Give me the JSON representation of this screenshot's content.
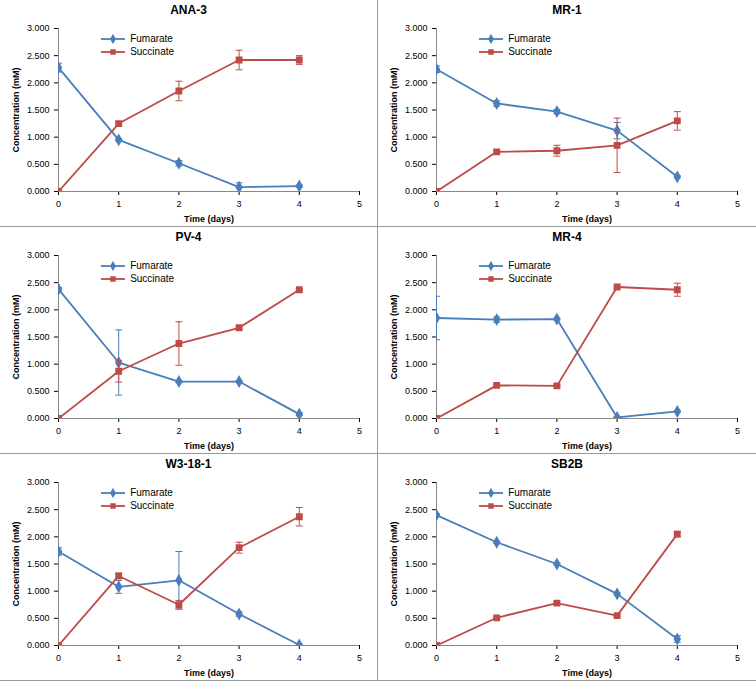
{
  "chart_data": [
    {
      "type": "line",
      "title": "ANA-3",
      "x_label": "Time (days)",
      "y_label": "Concentration (mM)",
      "x": [
        0,
        1,
        2,
        3,
        4
      ],
      "xlim": [
        0,
        5
      ],
      "xticks": [
        0,
        1,
        2,
        3,
        4,
        5
      ],
      "ylim": [
        0,
        3
      ],
      "yticks": [
        {
          "value": 0,
          "label": "0.000"
        },
        {
          "value": 0.5,
          "label": "0.500"
        },
        {
          "value": 1,
          "label": "1.000"
        },
        {
          "value": 1.5,
          "label": "1.500"
        },
        {
          "value": 2,
          "label": "2.000"
        },
        {
          "value": 2.5,
          "label": "2.500"
        },
        {
          "value": 3,
          "label": "3.000"
        }
      ],
      "legend": "top-left",
      "series": [
        {
          "name": "Fumarate",
          "color": "#4a7ebb",
          "marker": "diamond",
          "values": [
            2.28,
            0.95,
            0.52,
            0.08,
            0.1
          ],
          "errors": [
            0.08,
            0.02,
            0.05,
            0.08,
            0.02
          ]
        },
        {
          "name": "Succinate",
          "color": "#be4b48",
          "marker": "square",
          "values": [
            0,
            1.25,
            1.85,
            2.42,
            2.42
          ],
          "errors": [
            0,
            0.03,
            0.18,
            0.18,
            0.08
          ]
        }
      ]
    },
    {
      "type": "line",
      "title": "MR-1",
      "x_label": "Time (days)",
      "y_label": "Concentration (mM)",
      "x": [
        0,
        1,
        2,
        3,
        4
      ],
      "xlim": [
        0,
        5
      ],
      "xticks": [
        0,
        1,
        2,
        3,
        4,
        5
      ],
      "ylim": [
        0,
        3
      ],
      "yticks": [
        {
          "value": 0,
          "label": "0.000"
        },
        {
          "value": 0.5,
          "label": "0.500"
        },
        {
          "value": 1,
          "label": "1.000"
        },
        {
          "value": 1.5,
          "label": "1.500"
        },
        {
          "value": 2,
          "label": "2.000"
        },
        {
          "value": 2.5,
          "label": "2.500"
        },
        {
          "value": 3,
          "label": "3.000"
        }
      ],
      "legend": "top-left",
      "series": [
        {
          "name": "Fumarate",
          "color": "#4a7ebb",
          "marker": "diamond",
          "values": [
            2.25,
            1.62,
            1.47,
            1.12,
            0.27
          ],
          "errors": [
            0.06,
            0.05,
            0.04,
            0.15,
            0.02
          ]
        },
        {
          "name": "Succinate",
          "color": "#be4b48",
          "marker": "square",
          "values": [
            0,
            0.73,
            0.75,
            0.85,
            1.3
          ],
          "errors": [
            0,
            0.03,
            0.1,
            0.5,
            0.17
          ]
        }
      ]
    },
    {
      "type": "line",
      "title": "PV-4",
      "x_label": "Time (days)",
      "y_label": "Concentration (mM)",
      "x": [
        0,
        1,
        2,
        3,
        4
      ],
      "xlim": [
        0,
        5
      ],
      "xticks": [
        0,
        1,
        2,
        3,
        4,
        5
      ],
      "ylim": [
        0,
        3
      ],
      "yticks": [
        {
          "value": 0,
          "label": "0.000"
        },
        {
          "value": 0.5,
          "label": "0.500"
        },
        {
          "value": 1,
          "label": "1.000"
        },
        {
          "value": 1.5,
          "label": "1.500"
        },
        {
          "value": 2,
          "label": "2.000"
        },
        {
          "value": 2.5,
          "label": "2.500"
        },
        {
          "value": 3,
          "label": "3.000"
        }
      ],
      "legend": "top-left",
      "series": [
        {
          "name": "Fumarate",
          "color": "#4a7ebb",
          "marker": "diamond",
          "values": [
            2.38,
            1.03,
            0.68,
            0.68,
            0.08
          ],
          "errors": [
            0.03,
            0.6,
            0.02,
            0.02,
            0.03
          ]
        },
        {
          "name": "Succinate",
          "color": "#be4b48",
          "marker": "square",
          "values": [
            0,
            0.87,
            1.38,
            1.67,
            2.37
          ],
          "errors": [
            0,
            0.2,
            0.4,
            0.02,
            0.02
          ]
        }
      ]
    },
    {
      "type": "line",
      "title": "MR-4",
      "x_label": "Time (days)",
      "y_label": "Concentration (mM)",
      "x": [
        0,
        1,
        2,
        3,
        4
      ],
      "xlim": [
        0,
        5
      ],
      "xticks": [
        0,
        1,
        2,
        3,
        4,
        5
      ],
      "ylim": [
        0,
        3
      ],
      "yticks": [
        {
          "value": 0,
          "label": "0.000"
        },
        {
          "value": 0.5,
          "label": "0.500"
        },
        {
          "value": 1,
          "label": "1.000"
        },
        {
          "value": 1.5,
          "label": "1.500"
        },
        {
          "value": 2,
          "label": "2.000"
        },
        {
          "value": 2.5,
          "label": "2.500"
        },
        {
          "value": 3,
          "label": "3.000"
        }
      ],
      "legend": "top-left",
      "series": [
        {
          "name": "Fumarate",
          "color": "#4a7ebb",
          "marker": "diamond",
          "values": [
            1.85,
            1.82,
            1.83,
            0.02,
            0.13
          ],
          "errors": [
            0.4,
            0.05,
            0.02,
            0.01,
            0.01
          ]
        },
        {
          "name": "Succinate",
          "color": "#be4b48",
          "marker": "square",
          "values": [
            0,
            0.61,
            0.6,
            2.42,
            2.37
          ],
          "errors": [
            0,
            0.02,
            0.02,
            0.02,
            0.12
          ]
        }
      ]
    },
    {
      "type": "line",
      "title": "W3-18-1",
      "x_label": "Time (days)",
      "y_label": "Concentration (mM)",
      "x": [
        0,
        1,
        2,
        3,
        4
      ],
      "xlim": [
        0,
        5
      ],
      "xticks": [
        0,
        1,
        2,
        3,
        4,
        5
      ],
      "ylim": [
        0,
        3
      ],
      "yticks": [
        {
          "value": 0,
          "label": "0.000"
        },
        {
          "value": 0.5,
          "label": "0.500"
        },
        {
          "value": 1,
          "label": "1.000"
        },
        {
          "value": 1.5,
          "label": "1.500"
        },
        {
          "value": 2,
          "label": "2.000"
        },
        {
          "value": 2.5,
          "label": "2.500"
        },
        {
          "value": 3,
          "label": "3.000"
        }
      ],
      "legend": "top-left",
      "series": [
        {
          "name": "Fumarate",
          "color": "#4a7ebb",
          "marker": "diamond",
          "values": [
            1.73,
            1.08,
            1.2,
            0.58,
            0.01
          ],
          "errors": [
            0.07,
            0.12,
            0.53,
            0.04,
            0.01
          ]
        },
        {
          "name": "Succinate",
          "color": "#be4b48",
          "marker": "square",
          "values": [
            0,
            1.28,
            0.75,
            1.8,
            2.37
          ],
          "errors": [
            0,
            0.05,
            0.08,
            0.1,
            0.17
          ]
        }
      ]
    },
    {
      "type": "line",
      "title": "SB2B",
      "x_label": "Time (days)",
      "y_label": "Concentration (mM)",
      "x": [
        0,
        1,
        2,
        3,
        4
      ],
      "xlim": [
        0,
        5
      ],
      "xticks": [
        0,
        1,
        2,
        3,
        4,
        5
      ],
      "ylim": [
        0,
        3
      ],
      "yticks": [
        {
          "value": 0,
          "label": "0.000"
        },
        {
          "value": 0.5,
          "label": "0.500"
        },
        {
          "value": 1,
          "label": "1.000"
        },
        {
          "value": 1.5,
          "label": "1.500"
        },
        {
          "value": 2,
          "label": "2.000"
        },
        {
          "value": 2.5,
          "label": "2.500"
        },
        {
          "value": 3,
          "label": "3.000"
        }
      ],
      "legend": "top-left",
      "series": [
        {
          "name": "Fumarate",
          "color": "#4a7ebb",
          "marker": "diamond",
          "values": [
            2.4,
            1.9,
            1.5,
            0.95,
            0.12
          ],
          "errors": [
            0.02,
            0.02,
            0.02,
            0.02,
            0.06
          ]
        },
        {
          "name": "Succinate",
          "color": "#be4b48",
          "marker": "square",
          "values": [
            0,
            0.51,
            0.78,
            0.55,
            2.05
          ],
          "errors": [
            0,
            0.02,
            0.03,
            0.02,
            0.05
          ]
        }
      ]
    }
  ]
}
